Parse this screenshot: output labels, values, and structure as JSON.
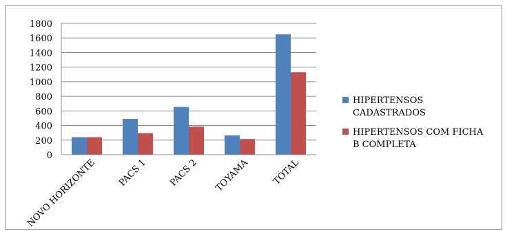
{
  "chart_data": {
    "type": "bar",
    "categories": [
      "NOVO HORIZONTE",
      "PACS 1",
      "PACS 2",
      "TOYAMA",
      "TOTAL"
    ],
    "series": [
      {
        "name": "HIPERTENSOS CADASTRADOS",
        "color": "#4f81bd",
        "values": [
          240,
          490,
          655,
          265,
          1650
        ]
      },
      {
        "name": "HIPERTENSOS COM FICHA B COMPLETA",
        "color": "#c0504d",
        "values": [
          240,
          295,
          385,
          215,
          1130
        ]
      }
    ],
    "y_ticks": [
      "0",
      "200",
      "400",
      "600",
      "800",
      "1000",
      "1200",
      "1400",
      "1600",
      "1800"
    ],
    "ylim": [
      0,
      1800
    ],
    "grid": true,
    "legend_position": "right",
    "legend_lines": [
      [
        "HIPERTENSOS",
        "CADASTRADOS"
      ],
      [
        "HIPERTENSOS COM FICHA",
        "B COMPLETA"
      ]
    ]
  }
}
